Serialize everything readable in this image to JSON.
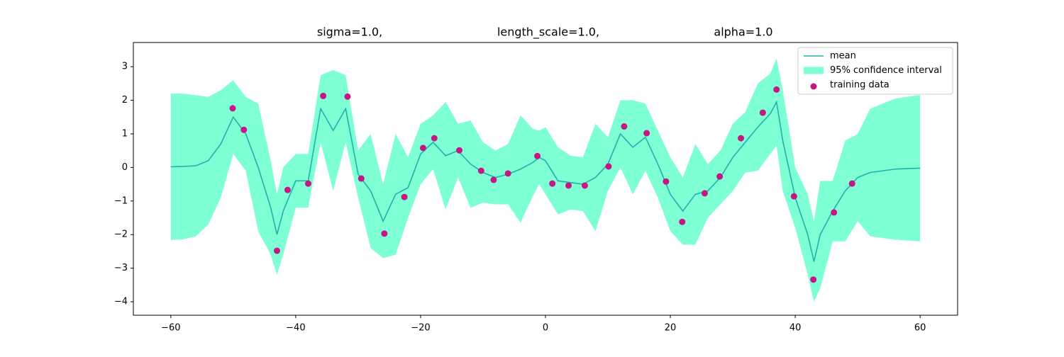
{
  "chart_data": {
    "type": "line",
    "title": [
      "sigma=1.0,",
      "length_scale=1.0,",
      "alpha=1.0"
    ],
    "x": [
      -60,
      -58,
      -56,
      -54,
      -52,
      -50,
      -48,
      -46,
      -44,
      -43,
      -42,
      -40,
      -38,
      -36,
      -34,
      -32,
      -30,
      -28,
      -26,
      -24,
      -22,
      -20,
      -18,
      -16,
      -14,
      -12,
      -10,
      -8,
      -6,
      -4,
      -2,
      -1,
      0,
      2,
      4,
      6,
      8,
      10,
      12,
      14,
      16,
      18,
      20,
      22,
      24,
      26,
      28,
      30,
      32,
      34,
      36,
      37,
      38,
      40,
      42,
      43,
      44,
      46,
      48,
      50,
      52,
      56,
      60
    ],
    "series": [
      {
        "name": "mean",
        "type": "line",
        "color": "#20b2aa",
        "values": [
          0.02,
          0.03,
          0.05,
          0.2,
          0.7,
          1.5,
          1.0,
          0,
          -1.2,
          -2.0,
          -1.3,
          -0.4,
          -0.4,
          1.75,
          1.1,
          1.75,
          -0.2,
          -0.7,
          -1.6,
          -0.8,
          -0.6,
          0.4,
          0.75,
          0.35,
          0.5,
          0.1,
          -0.15,
          -0.3,
          -0.2,
          -0.05,
          0.15,
          0.3,
          0.2,
          -0.4,
          -0.45,
          -0.5,
          -0.3,
          0.1,
          1.0,
          0.6,
          0.9,
          0.1,
          -0.8,
          -1.3,
          -0.8,
          -0.7,
          -0.3,
          0.3,
          0.75,
          1.2,
          1.6,
          1.95,
          0.8,
          -0.9,
          -2.0,
          -2.8,
          -2.0,
          -1.3,
          -0.7,
          -0.3,
          -0.15,
          -0.05,
          -0.02
        ]
      },
      {
        "name": "95% confidence interval",
        "type": "band",
        "color": "#7fffd4",
        "upper": [
          2.2,
          2.2,
          2.15,
          2.1,
          2.3,
          2.6,
          2.1,
          1.9,
          0.2,
          -0.8,
          0,
          0.4,
          0.4,
          2.75,
          2.9,
          2.75,
          0.5,
          1.0,
          -0.5,
          1.0,
          0.3,
          1.3,
          1.55,
          1.95,
          1.3,
          1.4,
          0.75,
          0.5,
          0.7,
          1.55,
          1.15,
          1.1,
          1.2,
          0.6,
          0.35,
          0.3,
          1.3,
          0.9,
          2.0,
          2.0,
          1.9,
          1.1,
          0.3,
          -0.3,
          0.7,
          0.1,
          0.5,
          1.3,
          1.65,
          2.5,
          2.8,
          3.25,
          2.3,
          0,
          -0.8,
          -1.6,
          -0.4,
          -0.4,
          0.8,
          1.0,
          1.75,
          2.05,
          2.16
        ],
        "lower": [
          -2.16,
          -2.14,
          -2.05,
          -1.7,
          -0.9,
          0.4,
          -0.1,
          -1.9,
          -2.6,
          -3.2,
          -2.6,
          -1.2,
          -1.2,
          0.75,
          -0.7,
          0.75,
          -0.9,
          -2.4,
          -2.7,
          -2.6,
          -1.5,
          -0.5,
          -0.05,
          -1.25,
          -0.3,
          -1.2,
          -1.05,
          -1.1,
          -1.1,
          -1.65,
          -0.85,
          -0.5,
          -0.8,
          -1.4,
          -1.25,
          -1.3,
          -1.9,
          -0.7,
          0,
          -0.8,
          -0.1,
          -0.9,
          -1.9,
          -2.3,
          -2.3,
          -1.5,
          -1.1,
          -0.7,
          -0.15,
          -0.1,
          0.4,
          0.65,
          -0.7,
          -1.8,
          -3.2,
          -4.0,
          -3.6,
          -2.2,
          -2.2,
          -1.6,
          -2.05,
          -2.15,
          -2.2
        ]
      },
      {
        "name": "training data",
        "type": "scatter",
        "color": "#c71585",
        "x": [
          -50.1,
          -48.3,
          -43.0,
          -41.3,
          -38.0,
          -35.6,
          -31.7,
          -29.5,
          -25.8,
          -22.6,
          -19.6,
          -17.8,
          -13.8,
          -10.3,
          -8.3,
          -6.0,
          -1.3,
          1.1,
          3.7,
          6.3,
          10.1,
          12.6,
          16.2,
          19.3,
          21.9,
          25.5,
          27.9,
          31.3,
          34.8,
          37.0,
          39.8,
          42.9,
          46.2,
          49.1
        ],
        "values": [
          1.76,
          1.12,
          -2.48,
          -0.67,
          -0.48,
          2.13,
          2.11,
          -0.33,
          -1.97,
          -0.88,
          0.58,
          0.87,
          0.51,
          -0.1,
          -0.37,
          -0.18,
          0.34,
          -0.48,
          -0.54,
          -0.54,
          0.03,
          1.22,
          1.02,
          -0.42,
          -1.62,
          -0.77,
          -0.27,
          0.87,
          1.63,
          2.32,
          -0.86,
          -3.34,
          -1.34,
          -0.48
        ]
      }
    ],
    "xlim": [
      -66,
      66
    ],
    "ylim": [
      -4.4,
      3.72
    ],
    "xticks": [
      {
        "value": -60,
        "label": "−60"
      },
      {
        "value": -40,
        "label": "−40"
      },
      {
        "value": -20,
        "label": "−20"
      },
      0,
      20,
      40,
      60
    ],
    "yticks": [
      {
        "value": -4,
        "label": "−4"
      },
      {
        "value": -3,
        "label": "−3"
      },
      {
        "value": -2,
        "label": "−2"
      },
      {
        "value": -1,
        "label": "−1"
      },
      0,
      1,
      2,
      3
    ],
    "legend": "upper right"
  }
}
